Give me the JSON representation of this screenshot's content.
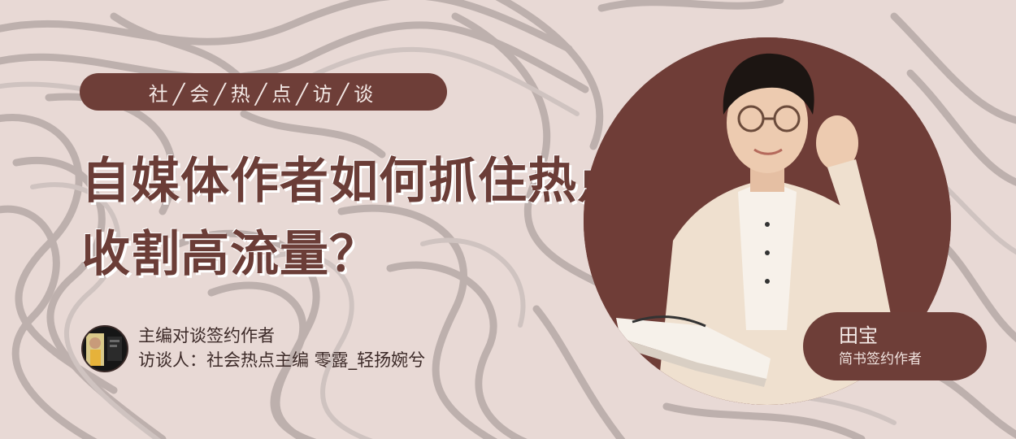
{
  "banner": {
    "category": "社╱会╱热╱点╱访╱谈",
    "headline_lines": [
      "自媒体作者如何抓住热点，",
      "收割高流量？"
    ],
    "host": {
      "line1": "主编对谈签约作者",
      "line2": "访谈人：社会热点主编 零露_轻扬婉兮"
    },
    "guest": {
      "name": "田宝",
      "role": "简书签约作者"
    }
  },
  "colors": {
    "accent": "#6e3e38",
    "background": "#e8d9d5",
    "swirl": "#bfb2af",
    "headline": "#6b3d37"
  }
}
